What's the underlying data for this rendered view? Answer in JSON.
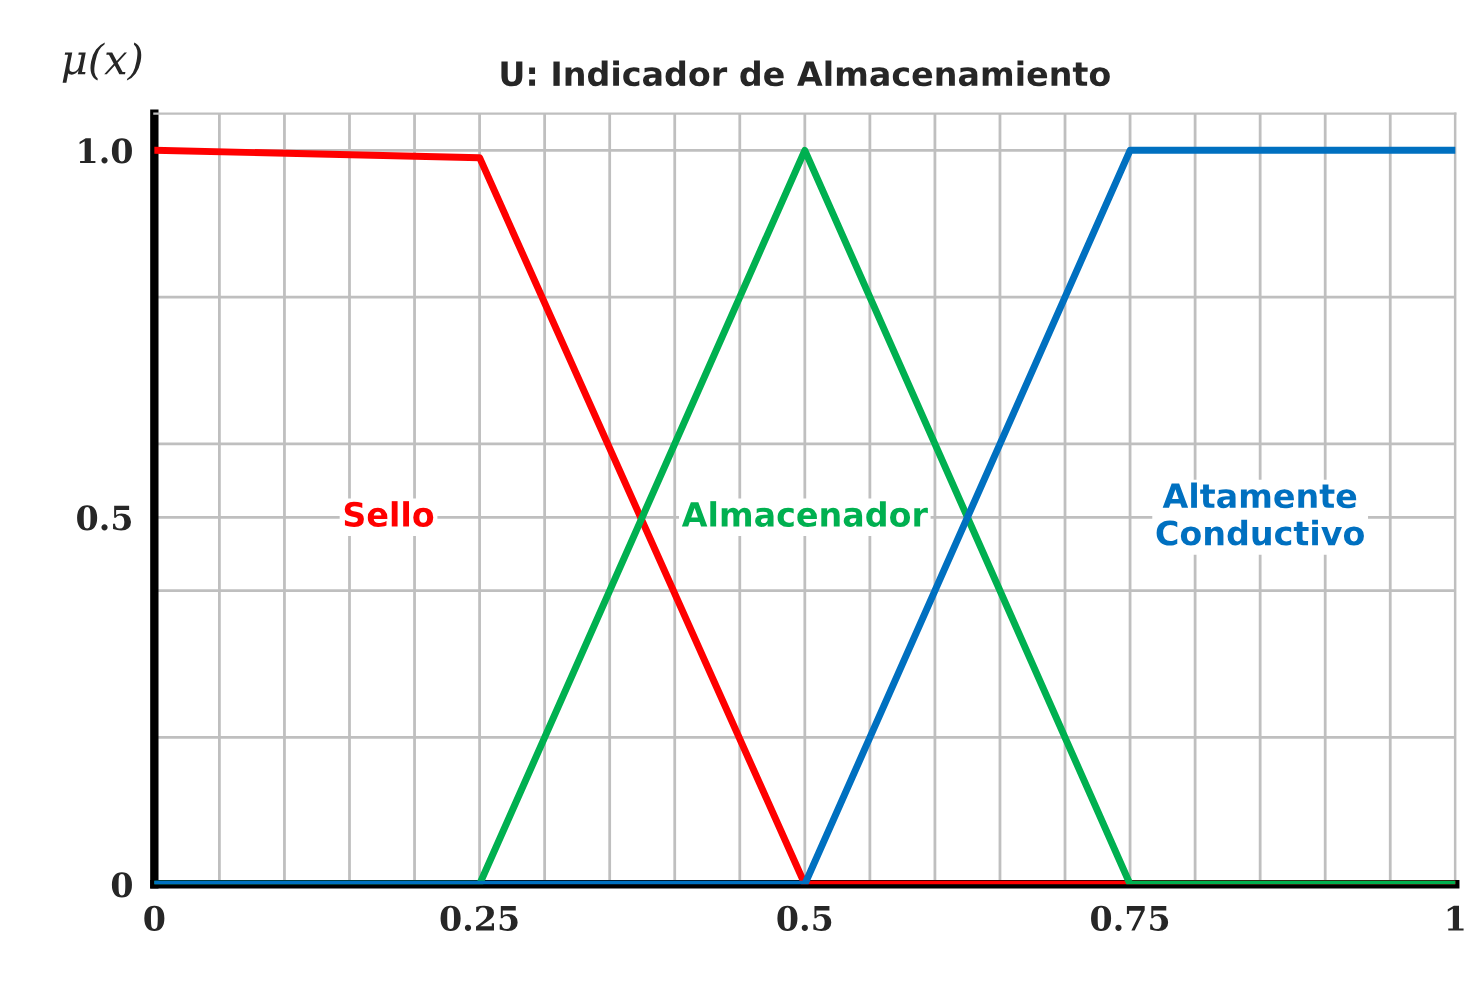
{
  "chart_data": {
    "type": "line",
    "title": "U: Indicador de Almacenamiento",
    "ylabel": "μ(x)",
    "x": [
      0,
      0.25,
      0.5,
      0.75,
      1
    ],
    "series": [
      {
        "name": "Sello",
        "color": "#ff0000",
        "values": [
          1.0,
          0.99,
          0,
          0,
          0
        ]
      },
      {
        "name": "Almacenador",
        "color": "#00b050",
        "values": [
          0,
          0,
          1.0,
          0,
          0
        ]
      },
      {
        "name": "Altamente\nConductivo",
        "color": "#0070c0",
        "values": [
          0,
          0,
          0,
          1.0,
          1.0
        ]
      }
    ],
    "xlim": [
      0,
      1
    ],
    "ylim": [
      0,
      1.05
    ],
    "xticks": [
      0,
      {
        "value": 0.05,
        "label": null
      },
      {
        "value": 0.1,
        "label": null
      },
      {
        "value": 0.15,
        "label": null
      },
      {
        "value": 0.2,
        "label": null
      },
      0.25,
      {
        "value": 0.3,
        "label": null
      },
      {
        "value": 0.35,
        "label": null
      },
      {
        "value": 0.4,
        "label": null
      },
      {
        "value": 0.45,
        "label": null
      },
      0.5,
      {
        "value": 0.55,
        "label": null
      },
      {
        "value": 0.6,
        "label": null
      },
      {
        "value": 0.65,
        "label": null
      },
      {
        "value": 0.7,
        "label": null
      },
      0.75,
      {
        "value": 0.8,
        "label": null
      },
      {
        "value": 0.85,
        "label": null
      },
      {
        "value": 0.9,
        "label": null
      },
      {
        "value": 0.95,
        "label": null
      },
      1
    ],
    "yticks": [
      0,
      {
        "value": 0.2,
        "label": null
      },
      {
        "value": 0.4,
        "label": null
      },
      0.5,
      {
        "value": 0.6,
        "label": null
      },
      {
        "value": 0.8,
        "label": null
      },
      {
        "value": 1.0,
        "label": "1.0"
      }
    ],
    "grid": true,
    "legend": false,
    "marker": "none",
    "line_style": "solid"
  }
}
